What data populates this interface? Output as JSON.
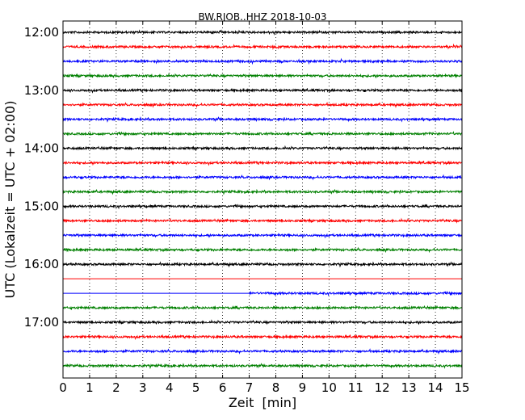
{
  "chart_data": {
    "type": "line",
    "title": "BW.RJOB..HHZ 2018-10-03",
    "xlabel": "Zeit  [min]",
    "ylabel": "UTC (Lokalzeit = UTC + 02:00)",
    "xlim": [
      0,
      15
    ],
    "x_ticks": [
      "0",
      "1",
      "2",
      "3",
      "4",
      "5",
      "6",
      "7",
      "8",
      "9",
      "10",
      "11",
      "12",
      "13",
      "14",
      "15"
    ],
    "y_ticks": [
      "12:00",
      "13:00",
      "14:00",
      "15:00",
      "16:00",
      "17:00"
    ],
    "grid_x": true,
    "colors": [
      "#000000",
      "#ff0000",
      "#0000ff",
      "#008000"
    ],
    "series": [
      {
        "start": "12:00",
        "color": "#000000",
        "x_range": [
          0,
          15
        ]
      },
      {
        "start": "12:15",
        "color": "#ff0000",
        "x_range": [
          0,
          15
        ]
      },
      {
        "start": "12:30",
        "color": "#0000ff",
        "x_range": [
          0,
          15
        ]
      },
      {
        "start": "12:45",
        "color": "#008000",
        "x_range": [
          0,
          15
        ]
      },
      {
        "start": "13:00",
        "color": "#000000",
        "x_range": [
          0,
          15
        ]
      },
      {
        "start": "13:15",
        "color": "#ff0000",
        "x_range": [
          0,
          15
        ]
      },
      {
        "start": "13:30",
        "color": "#0000ff",
        "x_range": [
          0,
          15
        ]
      },
      {
        "start": "13:45",
        "color": "#008000",
        "x_range": [
          0,
          15
        ]
      },
      {
        "start": "14:00",
        "color": "#000000",
        "x_range": [
          0,
          15
        ]
      },
      {
        "start": "14:15",
        "color": "#ff0000",
        "x_range": [
          0,
          15
        ]
      },
      {
        "start": "14:30",
        "color": "#0000ff",
        "x_range": [
          0,
          15
        ]
      },
      {
        "start": "14:45",
        "color": "#008000",
        "x_range": [
          0,
          15
        ]
      },
      {
        "start": "15:00",
        "color": "#000000",
        "x_range": [
          0,
          15
        ]
      },
      {
        "start": "15:15",
        "color": "#ff0000",
        "x_range": [
          0,
          15
        ]
      },
      {
        "start": "15:30",
        "color": "#0000ff",
        "x_range": [
          0,
          15
        ]
      },
      {
        "start": "15:45",
        "color": "#008000",
        "x_range": [
          0,
          15
        ]
      },
      {
        "start": "16:00",
        "color": "#000000",
        "x_range": [
          0,
          15
        ]
      },
      {
        "start": "16:15",
        "color": "#ff0000",
        "x_range": [
          0,
          15
        ],
        "flat": true
      },
      {
        "start": "16:30",
        "color": "#0000ff",
        "x_range": [
          0,
          15
        ],
        "noise_from": 7
      },
      {
        "start": "16:45",
        "color": "#008000",
        "x_range": [
          0,
          15
        ]
      },
      {
        "start": "17:00",
        "color": "#000000",
        "x_range": [
          0,
          15
        ]
      },
      {
        "start": "17:15",
        "color": "#ff0000",
        "x_range": [
          0,
          15
        ]
      },
      {
        "start": "17:30",
        "color": "#0000ff",
        "x_range": [
          0,
          15
        ]
      },
      {
        "start": "17:45",
        "color": "#008000",
        "x_range": [
          0,
          15
        ]
      }
    ]
  }
}
